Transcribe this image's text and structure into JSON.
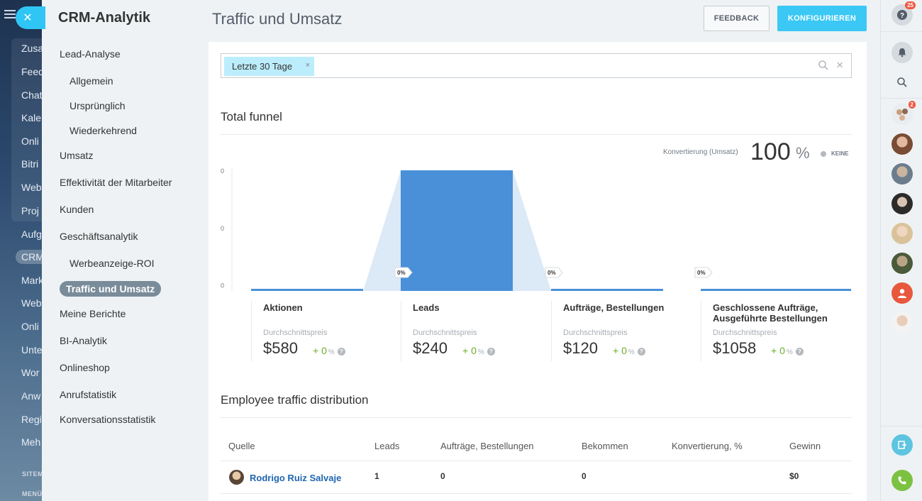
{
  "background": {
    "items": [
      "Zusa",
      "Feed",
      "Chat",
      "Kale",
      "Onli",
      "Bitri",
      "Web",
      "Proj",
      "Aufg",
      "CRM",
      "Mark",
      "Web",
      "Onli",
      "Unte",
      "Wor",
      "Anw",
      "Regi",
      "Meh"
    ],
    "small": [
      "SITEM",
      "MENÜ"
    ]
  },
  "nav": {
    "title": "CRM-Analytik",
    "items": [
      {
        "label": "Lead-Analyse"
      },
      {
        "label": "Allgemein"
      },
      {
        "label": "Ursprünglich"
      },
      {
        "label": "Wiederkehrend"
      },
      {
        "label": "Umsatz"
      },
      {
        "label": "Effektivität der Mitarbeiter"
      },
      {
        "label": "Kunden"
      },
      {
        "label": "Geschäftsanalytik"
      },
      {
        "label": "Werbeanzeige-ROI"
      },
      {
        "label": "Traffic und Umsatz"
      },
      {
        "label": "Meine Berichte"
      },
      {
        "label": "BI-Analytik"
      },
      {
        "label": "Onlineshop"
      },
      {
        "label": "Anrufstatistik"
      },
      {
        "label": "Konversationsstatistik"
      }
    ]
  },
  "header": {
    "title": "Traffic und Umsatz",
    "feedback_label": "FEEDBACK",
    "configure_label": "KONFIGURIEREN"
  },
  "filter": {
    "tag": "Letzte 30 Tage",
    "tag_close": "×",
    "clear": "×"
  },
  "funnel": {
    "title": "Total funnel",
    "conversion_label": "Konvertierung (Umsatz)",
    "conversion_value": "100",
    "conversion_unit": "%",
    "legend_label": "KEINE",
    "y_ticks": [
      "0",
      "0",
      "0"
    ],
    "stages": [
      {
        "name": "Aktionen",
        "sub": "Durchschnittspreis",
        "price": "$580",
        "change": "+ 0",
        "change_unit": "%",
        "conversion_tag": ""
      },
      {
        "name": "Leads",
        "sub": "Durchschnittspreis",
        "price": "$240",
        "change": "+ 0",
        "change_unit": "%",
        "conversion_tag": "0%"
      },
      {
        "name": "Aufträge, Bestellungen",
        "sub": "Durchschnittspreis",
        "price": "$120",
        "change": "+ 0",
        "change_unit": "%",
        "conversion_tag": "0%"
      },
      {
        "name": "Geschlossene Aufträge, Ausgeführte Bestellungen",
        "sub": "Durchschnittspreis",
        "price": "$1058",
        "change": "+ 0",
        "change_unit": "%",
        "conversion_tag": "0%"
      }
    ],
    "colors": {
      "bar": "#4a90d9",
      "shadow": "#dce9f7",
      "baseline": "#4a90d9"
    }
  },
  "chart_data": {
    "type": "bar",
    "categories": [
      "Aktionen",
      "Leads",
      "Aufträge, Bestellungen",
      "Geschlossene Aufträge, Ausgeführte Bestellungen"
    ],
    "values": [
      0,
      1,
      0,
      0
    ],
    "title": "Total funnel",
    "xlabel": "",
    "ylabel": "",
    "y_tick_labels": [
      "0",
      "0",
      "0"
    ],
    "grid": false
  },
  "distribution": {
    "title": "Employee traffic distribution",
    "columns": [
      "Quelle",
      "Leads",
      "Aufträge, Bestellungen",
      "Bekommen",
      "Konvertierung, %",
      "Gewinn"
    ],
    "rows": [
      {
        "name": "Rodrigo Ruiz Salvaje",
        "leads": "1",
        "orders": "0",
        "received": "0",
        "conversion": "",
        "profit": "$0"
      }
    ]
  },
  "right_panel": {
    "help_badge": "25",
    "chat_badge": "2"
  }
}
